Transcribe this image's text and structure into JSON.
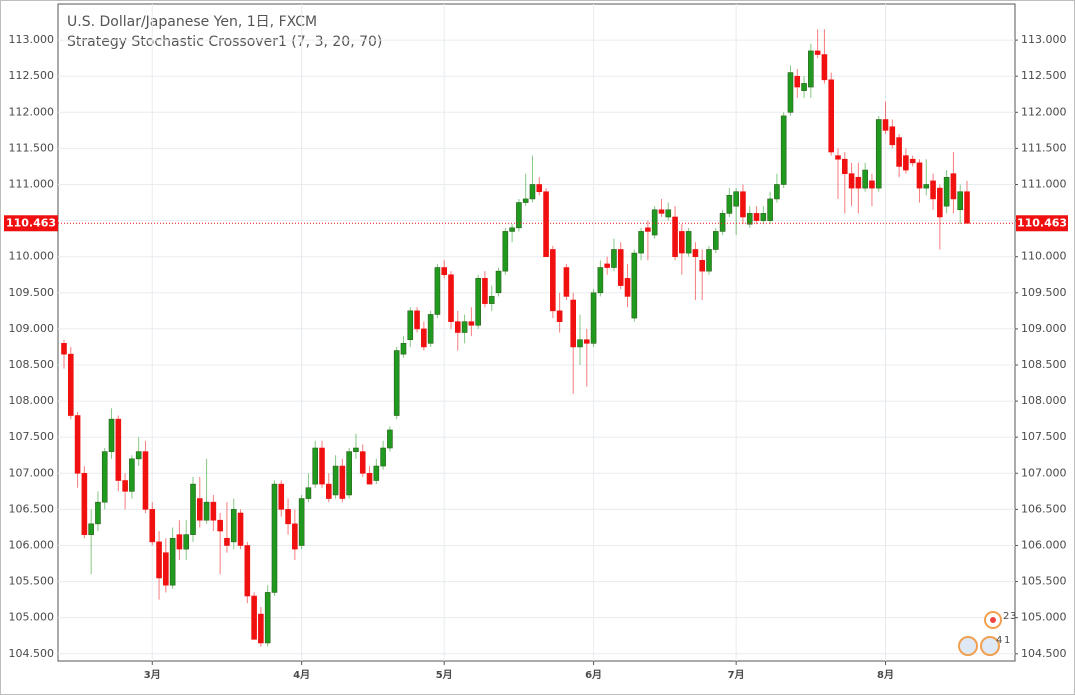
{
  "chart_data": {
    "type": "candlestick",
    "title": "U.S. Dollar/Japanese Yen, 1日, FXCM",
    "subtitle": "Strategy Stochastic Crossover1 (7, 3, 20, 70)",
    "up_color": "#1f9a1f",
    "down_color": "#f01010",
    "grid": true,
    "ylim": [
      104.4,
      113.5
    ],
    "yticks": [
      {
        "value": 104.5,
        "label": "104.500"
      },
      {
        "value": 105,
        "label": "105.000"
      },
      {
        "value": 105.5,
        "label": "105.500"
      },
      {
        "value": 106,
        "label": "106.000"
      },
      {
        "value": 106.5,
        "label": "106.500"
      },
      {
        "value": 107,
        "label": "107.000"
      },
      {
        "value": 107.5,
        "label": "107.500"
      },
      {
        "value": 108,
        "label": "108.000"
      },
      {
        "value": 108.5,
        "label": "108.500"
      },
      {
        "value": 109,
        "label": "109.000"
      },
      {
        "value": 109.5,
        "label": "109.500"
      },
      {
        "value": 110,
        "label": "110.000"
      },
      {
        "value": 110.5,
        "label": "110.500"
      },
      {
        "value": 111,
        "label": "111.000"
      },
      {
        "value": 111.5,
        "label": "111.500"
      },
      {
        "value": 112,
        "label": "112.000"
      },
      {
        "value": 112.5,
        "label": "112.500"
      },
      {
        "value": 113,
        "label": "113.000"
      }
    ],
    "last_price": 110.463,
    "annotations": [
      "2",
      "3",
      "4",
      "1"
    ],
    "categories": [
      null,
      null,
      null,
      null,
      null,
      null,
      null,
      null,
      null,
      null,
      null,
      null,
      null,
      "3月",
      null,
      null,
      null,
      null,
      null,
      null,
      null,
      null,
      null,
      null,
      null,
      null,
      null,
      null,
      null,
      null,
      null,
      null,
      null,
      null,
      null,
      "4月",
      null,
      null,
      null,
      null,
      null,
      null,
      null,
      null,
      null,
      null,
      null,
      null,
      null,
      null,
      null,
      null,
      null,
      null,
      null,
      null,
      "5月",
      null,
      null,
      null,
      null,
      null,
      null,
      null,
      null,
      null,
      null,
      null,
      null,
      null,
      null,
      null,
      null,
      null,
      null,
      null,
      null,
      null,
      "6月",
      null,
      null,
      null,
      null,
      null,
      null,
      null,
      null,
      null,
      null,
      null,
      null,
      null,
      null,
      null,
      null,
      null,
      null,
      null,
      null,
      "7月",
      null,
      null,
      null,
      null,
      null,
      null,
      null,
      null,
      null,
      null,
      null,
      null,
      null,
      null,
      null,
      null,
      null,
      null,
      null,
      null,
      null,
      "8月",
      null,
      null,
      null,
      null,
      null,
      null,
      null,
      null,
      null,
      null,
      null,
      null
    ],
    "candles": [
      [
        108.8,
        108.85,
        108.45,
        108.65
      ],
      [
        108.65,
        108.75,
        107.75,
        107.8
      ],
      [
        107.8,
        107.85,
        106.8,
        107.0
      ],
      [
        107.0,
        107.1,
        106.1,
        106.15
      ],
      [
        106.15,
        106.5,
        105.6,
        106.3
      ],
      [
        106.3,
        106.75,
        106.2,
        106.6
      ],
      [
        106.6,
        107.35,
        106.5,
        107.3
      ],
      [
        107.3,
        107.9,
        107.2,
        107.75
      ],
      [
        107.75,
        107.8,
        106.75,
        106.9
      ],
      [
        106.9,
        107.0,
        106.5,
        106.75
      ],
      [
        106.75,
        107.25,
        106.65,
        107.2
      ],
      [
        107.2,
        107.5,
        107.1,
        107.3
      ],
      [
        107.3,
        107.45,
        106.45,
        106.5
      ],
      [
        106.5,
        106.6,
        106.0,
        106.05
      ],
      [
        106.05,
        106.2,
        105.25,
        105.55
      ],
      [
        105.9,
        106.1,
        105.35,
        105.45
      ],
      [
        105.45,
        106.25,
        105.4,
        106.1
      ],
      [
        106.15,
        106.35,
        105.8,
        105.95
      ],
      [
        105.95,
        106.35,
        105.8,
        106.15
      ],
      [
        106.15,
        106.95,
        106.05,
        106.85
      ],
      [
        106.65,
        106.95,
        106.25,
        106.35
      ],
      [
        106.35,
        107.2,
        106.3,
        106.6
      ],
      [
        106.6,
        106.7,
        106.2,
        106.35
      ],
      [
        106.35,
        106.45,
        105.6,
        106.2
      ],
      [
        106.1,
        106.6,
        105.9,
        106.0
      ],
      [
        106.05,
        106.65,
        105.95,
        106.5
      ],
      [
        106.45,
        106.5,
        105.95,
        106.0
      ],
      [
        106.0,
        106.05,
        105.2,
        105.3
      ],
      [
        105.3,
        105.35,
        104.7,
        104.7
      ],
      [
        105.05,
        105.15,
        104.6,
        104.65
      ],
      [
        104.65,
        105.45,
        104.6,
        105.35
      ],
      [
        105.35,
        106.9,
        105.3,
        106.85
      ],
      [
        106.85,
        106.9,
        106.4,
        106.5
      ],
      [
        106.5,
        106.65,
        106.15,
        106.3
      ],
      [
        106.3,
        106.5,
        105.8,
        105.95
      ],
      [
        106.0,
        106.7,
        105.95,
        106.65
      ],
      [
        106.65,
        107.0,
        106.6,
        106.8
      ],
      [
        106.85,
        107.45,
        106.8,
        107.35
      ],
      [
        107.35,
        107.45,
        106.8,
        106.85
      ],
      [
        106.85,
        107.0,
        106.6,
        106.65
      ],
      [
        106.7,
        107.25,
        106.65,
        107.1
      ],
      [
        107.1,
        107.2,
        106.6,
        106.65
      ],
      [
        106.7,
        107.35,
        106.65,
        107.3
      ],
      [
        107.3,
        107.55,
        107.2,
        107.35
      ],
      [
        107.3,
        107.4,
        106.95,
        107.0
      ],
      [
        107.0,
        107.1,
        106.85,
        106.85
      ],
      [
        106.9,
        107.2,
        106.85,
        107.1
      ],
      [
        107.1,
        107.45,
        107.05,
        107.35
      ],
      [
        107.35,
        107.65,
        107.3,
        107.6
      ],
      [
        107.8,
        108.75,
        107.75,
        108.7
      ],
      [
        108.65,
        108.9,
        108.6,
        108.8
      ],
      [
        108.85,
        109.3,
        108.75,
        109.25
      ],
      [
        109.25,
        109.3,
        108.95,
        109.0
      ],
      [
        109.0,
        109.1,
        108.7,
        108.75
      ],
      [
        108.8,
        109.25,
        108.75,
        109.2
      ],
      [
        109.2,
        109.9,
        109.15,
        109.85
      ],
      [
        109.85,
        109.95,
        109.7,
        109.75
      ],
      [
        109.75,
        109.8,
        109.0,
        109.1
      ],
      [
        109.1,
        109.25,
        108.7,
        108.95
      ],
      [
        108.95,
        109.2,
        108.8,
        109.1
      ],
      [
        109.1,
        109.3,
        108.9,
        109.05
      ],
      [
        109.05,
        109.75,
        109.0,
        109.7
      ],
      [
        109.7,
        109.8,
        109.3,
        109.35
      ],
      [
        109.35,
        109.6,
        109.25,
        109.45
      ],
      [
        109.5,
        109.85,
        109.45,
        109.8
      ],
      [
        109.8,
        110.4,
        109.75,
        110.35
      ],
      [
        110.35,
        110.45,
        110.2,
        110.4
      ],
      [
        110.4,
        110.8,
        110.35,
        110.75
      ],
      [
        110.75,
        111.15,
        110.7,
        110.8
      ],
      [
        110.8,
        111.4,
        110.75,
        111.0
      ],
      [
        111.0,
        111.1,
        110.85,
        110.9
      ],
      [
        110.9,
        110.95,
        110.0,
        110.0
      ],
      [
        110.1,
        110.15,
        109.15,
        109.25
      ],
      [
        109.25,
        109.5,
        108.95,
        109.1
      ],
      [
        109.85,
        109.9,
        109.4,
        109.45
      ],
      [
        109.4,
        109.5,
        108.1,
        108.75
      ],
      [
        108.75,
        109.2,
        108.5,
        108.85
      ],
      [
        108.85,
        109.0,
        108.2,
        108.8
      ],
      [
        108.8,
        109.55,
        108.75,
        109.5
      ],
      [
        109.5,
        109.95,
        109.45,
        109.85
      ],
      [
        109.9,
        110.0,
        109.75,
        109.85
      ],
      [
        109.85,
        110.25,
        109.8,
        110.1
      ],
      [
        110.1,
        110.2,
        109.55,
        109.6
      ],
      [
        109.7,
        109.9,
        109.3,
        109.45
      ],
      [
        109.15,
        110.1,
        109.1,
        110.05
      ],
      [
        110.05,
        110.4,
        109.95,
        110.35
      ],
      [
        110.4,
        110.5,
        109.95,
        110.35
      ],
      [
        110.3,
        110.7,
        110.25,
        110.65
      ],
      [
        110.65,
        110.8,
        110.55,
        110.6
      ],
      [
        110.55,
        110.75,
        110.5,
        110.65
      ],
      [
        110.55,
        110.7,
        109.95,
        110.0
      ],
      [
        110.35,
        110.45,
        109.75,
        110.05
      ],
      [
        110.05,
        110.4,
        110.0,
        110.35
      ],
      [
        110.1,
        110.2,
        109.4,
        110.0
      ],
      [
        109.95,
        110.1,
        109.4,
        109.8
      ],
      [
        109.8,
        110.15,
        109.75,
        110.1
      ],
      [
        110.1,
        110.4,
        110.05,
        110.35
      ],
      [
        110.35,
        110.65,
        110.3,
        110.6
      ],
      [
        110.6,
        110.95,
        110.55,
        110.85
      ],
      [
        110.7,
        110.95,
        110.3,
        110.9
      ],
      [
        110.9,
        111.0,
        110.45,
        110.55
      ],
      [
        110.45,
        110.7,
        110.4,
        110.6
      ],
      [
        110.6,
        110.7,
        110.45,
        110.5
      ],
      [
        110.5,
        110.7,
        110.45,
        110.6
      ],
      [
        110.5,
        110.9,
        110.45,
        110.8
      ],
      [
        110.8,
        111.15,
        110.75,
        111.0
      ],
      [
        111.0,
        112.0,
        110.95,
        111.95
      ],
      [
        112.0,
        112.65,
        111.95,
        112.55
      ],
      [
        112.5,
        112.6,
        112.2,
        112.35
      ],
      [
        112.3,
        112.5,
        112.2,
        112.4
      ],
      [
        112.35,
        112.95,
        112.2,
        112.85
      ],
      [
        112.85,
        113.15,
        112.75,
        112.8
      ],
      [
        112.8,
        113.15,
        112.4,
        112.45
      ],
      [
        112.45,
        112.55,
        111.4,
        111.45
      ],
      [
        111.4,
        111.5,
        110.8,
        111.35
      ],
      [
        111.35,
        111.45,
        110.6,
        111.15
      ],
      [
        111.15,
        111.3,
        110.7,
        110.95
      ],
      [
        111.1,
        111.3,
        110.6,
        110.95
      ],
      [
        110.95,
        111.3,
        110.9,
        111.2
      ],
      [
        111.05,
        111.15,
        110.7,
        110.95
      ],
      [
        110.95,
        111.95,
        110.9,
        111.9
      ],
      [
        111.9,
        112.15,
        111.7,
        111.75
      ],
      [
        111.8,
        111.9,
        111.5,
        111.55
      ],
      [
        111.65,
        111.7,
        111.1,
        111.25
      ],
      [
        111.4,
        111.5,
        111.15,
        111.2
      ],
      [
        111.35,
        111.4,
        111.25,
        111.3
      ],
      [
        111.3,
        111.35,
        110.75,
        110.95
      ],
      [
        110.95,
        111.35,
        110.85,
        111.0
      ],
      [
        111.05,
        111.15,
        110.65,
        110.8
      ],
      [
        110.95,
        111.0,
        110.1,
        110.55
      ],
      [
        110.7,
        111.2,
        110.6,
        111.1
      ],
      [
        111.15,
        111.45,
        110.6,
        110.8
      ],
      [
        110.65,
        111.0,
        110.45,
        110.9
      ],
      [
        110.9,
        111.05,
        110.5,
        110.463
      ]
    ]
  }
}
